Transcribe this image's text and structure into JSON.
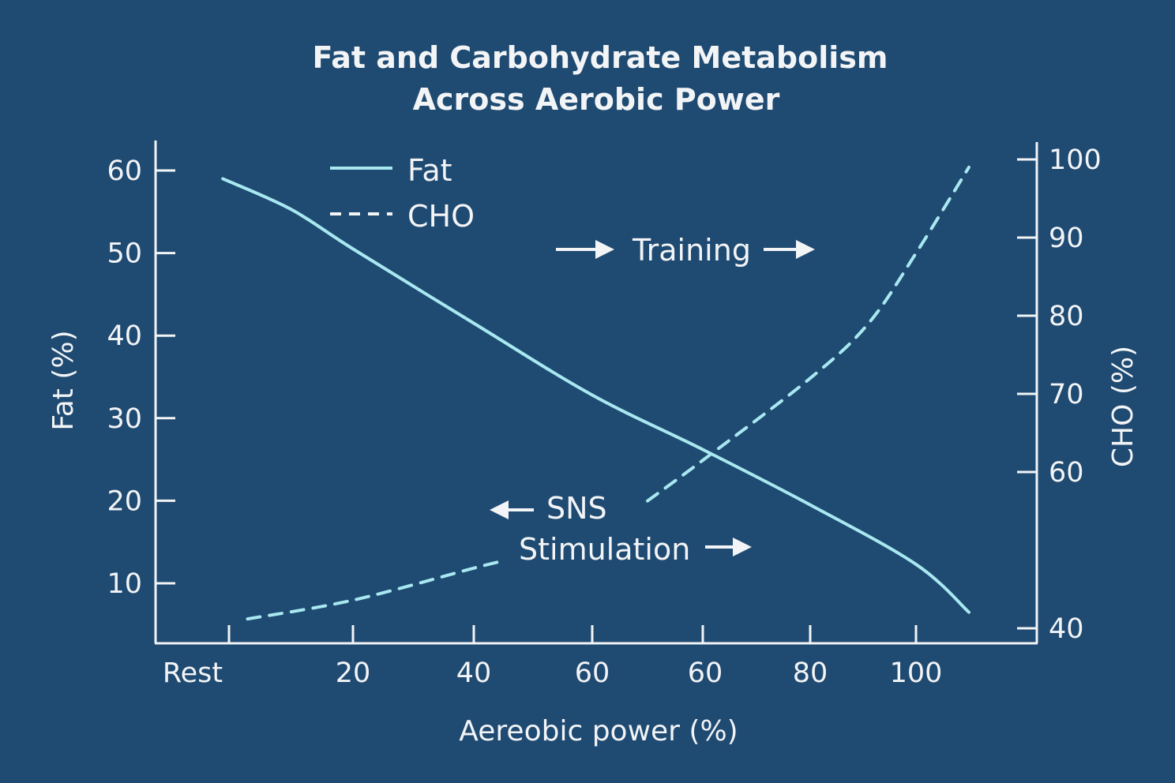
{
  "colors": {
    "background": "#1f4a72",
    "series": "#a8e8f0",
    "axis": "#f2f4f6"
  },
  "chart_data": {
    "type": "line",
    "title": [
      "Fat and Carbohydrate Metabolism",
      "Across Aerobic Power"
    ],
    "xlabel": "Aereobic power (%)",
    "ylabel": "Fat (%)",
    "y2label": "CHO (%)",
    "x_tick_labels": [
      "Rest",
      "20",
      "40",
      "60",
      "60",
      "80",
      "100"
    ],
    "y_ticks": [
      10,
      20,
      30,
      40,
      50,
      60
    ],
    "y2_ticks": [
      40,
      60,
      70,
      80,
      90,
      100
    ],
    "ylim": [
      2.7,
      60
    ],
    "y2lim": [
      40,
      100
    ],
    "grid": false,
    "legend_position": "top-left",
    "series": [
      {
        "name": "Fat",
        "axis": "left",
        "style": "solid",
        "points": [
          [
            -0.05,
            59
          ],
          [
            0.5,
            55.3
          ],
          [
            1,
            50.5
          ],
          [
            2,
            41.5
          ],
          [
            3,
            32.8
          ],
          [
            4,
            26.2
          ],
          [
            5,
            19.5
          ],
          [
            6,
            12.3
          ],
          [
            6.5,
            6.5
          ]
        ]
      },
      {
        "name": "CHO",
        "axis": "right",
        "style": "dashed",
        "points": [
          [
            0.15,
            41.2
          ],
          [
            1,
            43.6
          ],
          [
            2,
            47.7
          ],
          [
            2.27,
            48.7
          ],
          null,
          [
            3.5,
            56.3
          ],
          [
            4,
            61.5
          ],
          [
            5,
            72
          ],
          [
            5.55,
            79
          ],
          [
            6,
            88
          ],
          [
            6.5,
            99
          ]
        ]
      }
    ],
    "annotations": {
      "training": "Training",
      "sns": "SNS",
      "stimulation": "Stimulation"
    }
  }
}
